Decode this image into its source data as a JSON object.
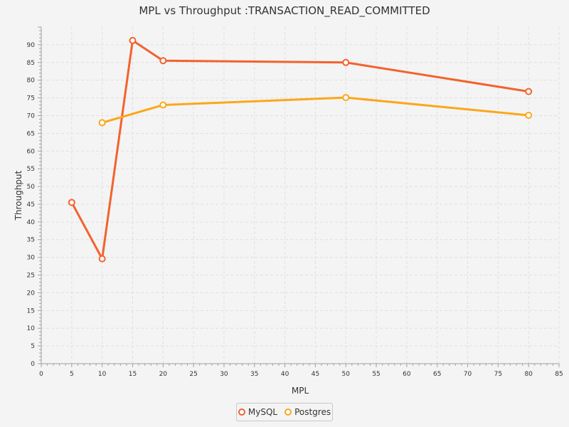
{
  "chart_data": {
    "type": "line",
    "title": "MPL vs Throughput :TRANSACTION_READ_COMMITTED",
    "xlabel": "MPL",
    "ylabel": "Throughput",
    "xlim": [
      0,
      85
    ],
    "ylim": [
      0,
      95
    ],
    "x_major_ticks": [
      0,
      5,
      10,
      15,
      20,
      25,
      30,
      35,
      40,
      45,
      50,
      55,
      60,
      65,
      70,
      75,
      80,
      85
    ],
    "y_major_ticks": [
      0,
      5,
      10,
      15,
      20,
      25,
      30,
      35,
      40,
      45,
      50,
      55,
      60,
      65,
      70,
      75,
      80,
      85,
      90
    ],
    "grid": true,
    "legend_position": "bottom-center",
    "series": [
      {
        "name": "MySQL",
        "color": "#f3622d",
        "x": [
          5,
          10,
          15,
          20,
          50,
          80
        ],
        "y": [
          45.5,
          29.6,
          91.2,
          85.5,
          85.0,
          76.8
        ]
      },
      {
        "name": "Postgres",
        "color": "#fba71b",
        "x": [
          10,
          20,
          50,
          80
        ],
        "y": [
          68.0,
          73.0,
          75.1,
          70.1
        ]
      }
    ]
  }
}
